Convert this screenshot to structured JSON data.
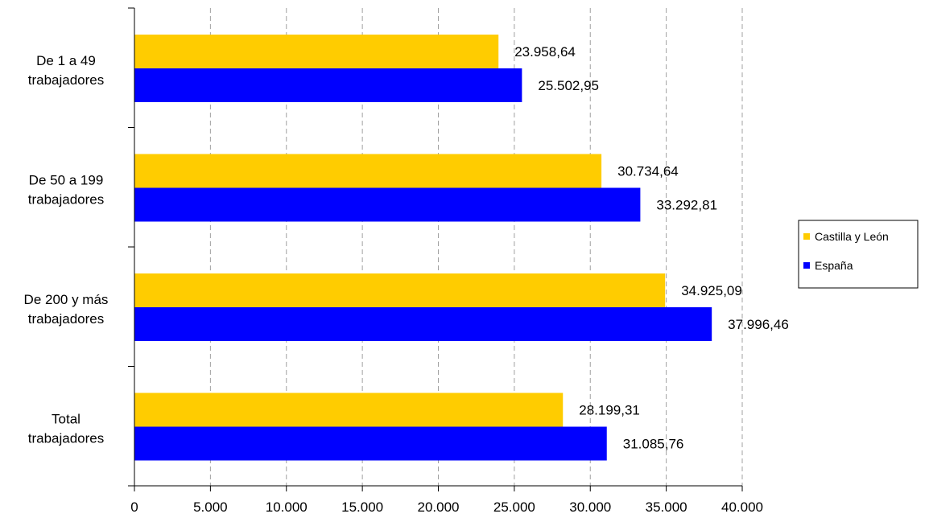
{
  "chart_data": {
    "type": "bar",
    "orientation": "horizontal",
    "title": "",
    "xlabel": "",
    "ylabel": "",
    "xlim": [
      0,
      40000
    ],
    "x_ticks": [
      0,
      5000,
      10000,
      15000,
      20000,
      25000,
      30000,
      35000,
      40000
    ],
    "x_tick_labels": [
      "0",
      "5.000",
      "10.000",
      "15.000",
      "20.000",
      "25.000",
      "30.000",
      "35.000",
      "40.000"
    ],
    "grid": "vertical dashed",
    "legend_position": "right",
    "categories": [
      [
        "De 1 a 49",
        "trabajadores"
      ],
      [
        "De 50 a 199",
        "trabajadores"
      ],
      [
        "De 200 y más",
        "trabajadores"
      ],
      [
        "Total",
        "trabajadores"
      ]
    ],
    "series": [
      {
        "name": "Castilla y León",
        "color": "#FFCC00",
        "values": [
          23958.64,
          30734.64,
          34925.09,
          28199.31
        ],
        "labels": [
          "23.958,64",
          "30.734,64",
          "34.925,09",
          "28.199,31"
        ]
      },
      {
        "name": "España",
        "color": "#0000FF",
        "values": [
          25502.95,
          33292.81,
          37996.46,
          31085.76
        ],
        "labels": [
          "25.502,95",
          "33.292,81",
          "37.996,46",
          "31.085,76"
        ]
      }
    ]
  }
}
